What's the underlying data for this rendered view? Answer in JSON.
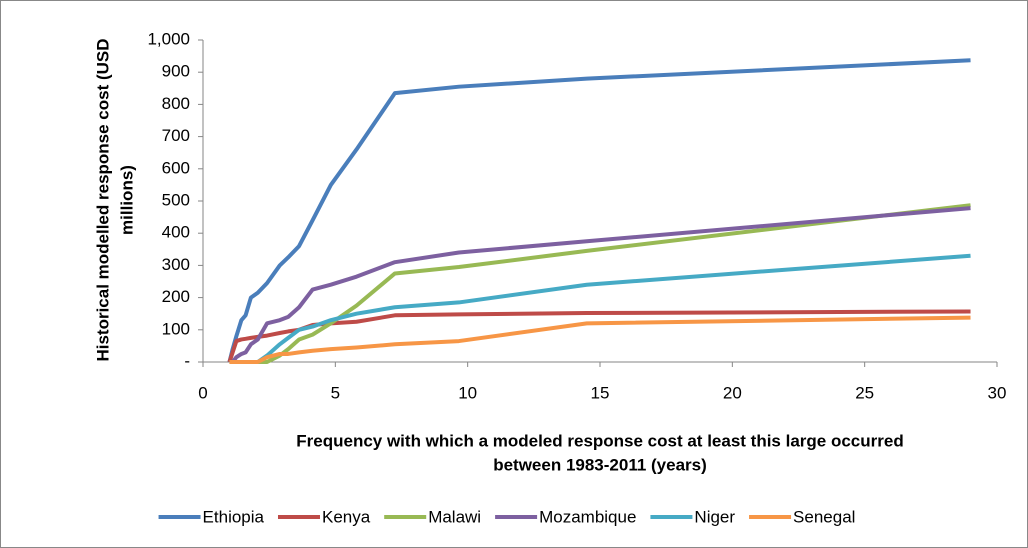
{
  "chart_data": {
    "type": "line",
    "x_label": [
      "Frequency with which a modeled response cost at least this large occurred",
      "between 1983-2011 (years)"
    ],
    "y_label": [
      "Historical modelled response cost (USD",
      "millions)"
    ],
    "x": [
      1,
      1.12,
      1.26,
      1.45,
      1.61,
      1.81,
      2.07,
      2.42,
      2.9,
      3.22,
      3.63,
      4.14,
      4.83,
      5.8,
      7.25,
      9.67,
      14.5,
      29
    ],
    "series": [
      {
        "name": "Ethiopia",
        "color": "#4a7ebb",
        "values": [
          0,
          40,
          80,
          130,
          145,
          200,
          215,
          245,
          300,
          325,
          360,
          440,
          550,
          660,
          835,
          855,
          880,
          937
        ]
      },
      {
        "name": "Kenya",
        "color": "#be4b48",
        "values": [
          0,
          30,
          65,
          70,
          72,
          75,
          78,
          82,
          90,
          95,
          100,
          115,
          120,
          125,
          145,
          148,
          152,
          157
        ]
      },
      {
        "name": "Malawi",
        "color": "#98b954",
        "values": [
          0,
          0,
          0,
          0,
          0,
          0,
          0,
          0,
          20,
          40,
          70,
          85,
          120,
          175,
          275,
          295,
          345,
          487
        ]
      },
      {
        "name": "Mozambique",
        "color": "#7d60a0",
        "values": [
          0,
          0,
          15,
          25,
          30,
          55,
          70,
          120,
          130,
          140,
          170,
          225,
          240,
          265,
          310,
          340,
          375,
          478
        ]
      },
      {
        "name": "Niger",
        "color": "#46aac5",
        "values": [
          0,
          0,
          0,
          0,
          0,
          0,
          0,
          20,
          55,
          75,
          100,
          110,
          130,
          150,
          170,
          185,
          240,
          330
        ]
      },
      {
        "name": "Senegal",
        "color": "#f79646",
        "values": [
          0,
          0,
          0,
          0,
          0,
          0,
          0,
          15,
          25,
          25,
          30,
          35,
          40,
          45,
          55,
          65,
          120,
          138
        ]
      }
    ],
    "xlim": [
      0,
      30
    ],
    "xticks": [
      0,
      5,
      10,
      15,
      20,
      25,
      30
    ],
    "ylim": [
      0,
      1000
    ],
    "yticks": [
      {
        "value": 0,
        "label": "-"
      },
      100,
      200,
      300,
      400,
      500,
      600,
      700,
      800,
      900,
      {
        "value": 1000,
        "label": "1,000"
      }
    ],
    "legend": "bottom"
  }
}
